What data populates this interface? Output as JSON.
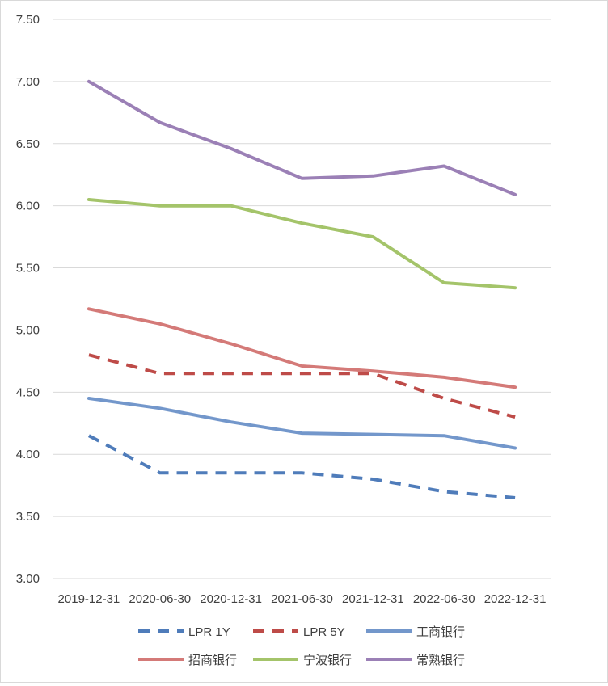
{
  "chart_data": {
    "type": "line",
    "categories": [
      "2019-12-31",
      "2020-06-30",
      "2020-12-31",
      "2021-06-30",
      "2021-12-31",
      "2022-06-30",
      "2022-12-31"
    ],
    "ylim": [
      3.0,
      7.5
    ],
    "yticks": [
      "3.00",
      "3.50",
      "4.00",
      "4.50",
      "5.00",
      "5.50",
      "6.00",
      "6.50",
      "7.00",
      "7.50"
    ],
    "ytick_values": [
      3.0,
      3.5,
      4.0,
      4.5,
      5.0,
      5.5,
      6.0,
      6.5,
      7.0,
      7.5
    ],
    "grid": true,
    "legend_position": "bottom",
    "series": [
      {
        "name": "LPR 1Y",
        "color": "#4F7CBA",
        "dashed": true,
        "values": [
          4.15,
          3.85,
          3.85,
          3.85,
          3.8,
          3.7,
          3.65
        ]
      },
      {
        "name": "LPR 5Y",
        "color": "#BE4B48",
        "dashed": true,
        "values": [
          4.8,
          4.65,
          4.65,
          4.65,
          4.65,
          4.45,
          4.3
        ]
      },
      {
        "name": "工商银行",
        "color": "#7397CB",
        "dashed": false,
        "values": [
          4.45,
          4.37,
          4.26,
          4.17,
          4.16,
          4.15,
          4.05
        ]
      },
      {
        "name": "招商银行",
        "color": "#D47A78",
        "dashed": false,
        "values": [
          5.17,
          5.05,
          4.89,
          4.71,
          4.67,
          4.62,
          4.54
        ]
      },
      {
        "name": "宁波银行",
        "color": "#A4C46A",
        "dashed": false,
        "values": [
          6.05,
          6.0,
          6.0,
          5.86,
          5.75,
          5.38,
          5.34
        ]
      },
      {
        "name": "常熟银行",
        "color": "#9B80B6",
        "dashed": false,
        "values": [
          7.0,
          6.67,
          6.46,
          6.22,
          6.24,
          6.32,
          6.09
        ]
      }
    ]
  }
}
